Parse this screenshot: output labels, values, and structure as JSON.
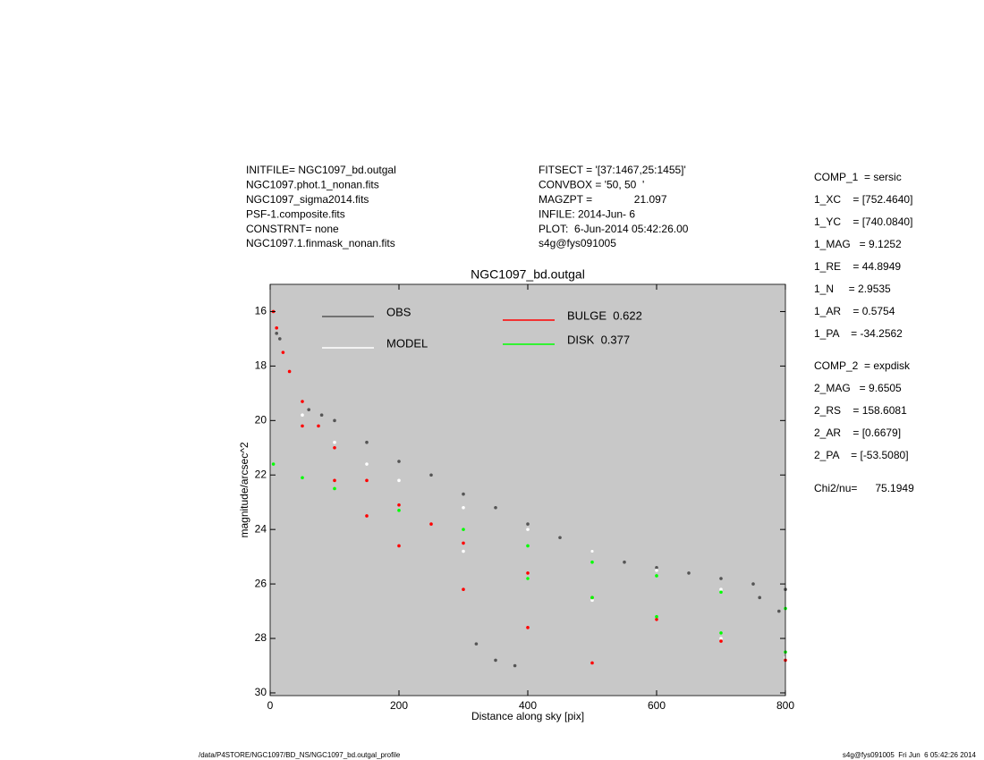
{
  "chart_data": {
    "type": "scatter",
    "title": "NGC1097_bd.outgal",
    "x_label": "Distance along sky [pix]",
    "y_label": "magnitude/arcsec^2",
    "xlim": [
      0,
      800
    ],
    "ylim": [
      30.1,
      15
    ],
    "xticks": [
      0,
      200,
      400,
      600,
      800
    ],
    "yticks": [
      16,
      18,
      20,
      22,
      24,
      26,
      28,
      30
    ],
    "grid": false,
    "background": "#c8c8c8",
    "series": [
      {
        "name": "OBS",
        "color": "#555555",
        "x": [
          10,
          15,
          60,
          80,
          100,
          150,
          200,
          250,
          300,
          350,
          400,
          450,
          500,
          550,
          600,
          650,
          700,
          750,
          800,
          320,
          350,
          380,
          760,
          790
        ],
        "values": [
          16.8,
          17,
          19.6,
          19.8,
          20,
          20.8,
          21.5,
          22,
          22.7,
          23.2,
          23.8,
          24.3,
          24.8,
          25.2,
          25.4,
          25.6,
          25.8,
          26,
          26.2,
          28.2,
          28.8,
          29,
          26.5,
          27
        ]
      },
      {
        "name": "MODEL",
        "color": "#ffffff",
        "x": [
          50,
          100,
          150,
          200,
          300,
          400,
          500,
          600,
          700,
          800,
          300,
          400,
          500,
          600,
          700,
          800
        ],
        "values": [
          19.8,
          20.8,
          21.6,
          22.2,
          23.2,
          24,
          24.8,
          25.5,
          26.2,
          26.9,
          24.8,
          25.8,
          26.6,
          27.3,
          28,
          28.7
        ]
      },
      {
        "name": "BULGE  0.622",
        "color": "#ff0000",
        "x": [
          5,
          10,
          20,
          30,
          50,
          75,
          100,
          150,
          200,
          250,
          300,
          400,
          500,
          600,
          700,
          800,
          50,
          100,
          150,
          200,
          300,
          400,
          500
        ],
        "values": [
          16,
          16.6,
          17.5,
          18.2,
          19.3,
          20.2,
          21,
          22.2,
          23.1,
          23.8,
          24.5,
          25.6,
          26.5,
          27.3,
          28.1,
          28.8,
          20.2,
          22.2,
          23.5,
          24.6,
          26.2,
          27.6,
          28.9
        ]
      },
      {
        "name": "DISK  0.377",
        "color": "#00ff00",
        "x": [
          5,
          50,
          100,
          200,
          300,
          400,
          500,
          600,
          700,
          800,
          400,
          500,
          600,
          700,
          800
        ],
        "values": [
          21.6,
          22.1,
          22.5,
          23.3,
          24,
          24.6,
          25.2,
          25.7,
          26.3,
          26.9,
          25.8,
          26.5,
          27.2,
          27.8,
          28.5
        ]
      }
    ]
  },
  "info_left": [
    "INITFILE= NGC1097_bd.outgal",
    "NGC1097.phot.1_nonan.fits",
    "NGC1097_sigma2014.fits",
    "PSF-1.composite.fits",
    "CONSTRNT= none",
    "NGC1097.1.finmask_nonan.fits"
  ],
  "info_middle": [
    "FITSECT = '[37:1467,25:1455]'",
    "CONVBOX = '50, 50  '",
    "MAGZPT =              21.097",
    "INFILE: 2014-Jun- 6",
    "PLOT:  6-Jun-2014 05:42:26.00",
    "s4g@fys091005"
  ],
  "params": [
    "COMP_1  = sersic",
    "1_XC    = [752.4640]",
    "1_YC    = [740.0840]",
    "1_MAG   = 9.1252",
    "1_RE    = 44.8949",
    "1_N     = 2.9535",
    "1_AR    = 0.5754",
    "1_PA    = -34.2562",
    "COMP_2  = expdisk",
    "2_MAG   = 9.6505",
    "2_RS    = 158.6081",
    "2_AR    = [0.6679]",
    "2_PA    = [-53.5080]",
    "Chi2/nu=      75.1949"
  ],
  "footer": {
    "left": "/data/P4STORE/NGC1097/BD_NS/NGC1097_bd.outgal_profile",
    "right": "s4g@fys091005  Fri Jun  6 05:42:26 2014"
  }
}
